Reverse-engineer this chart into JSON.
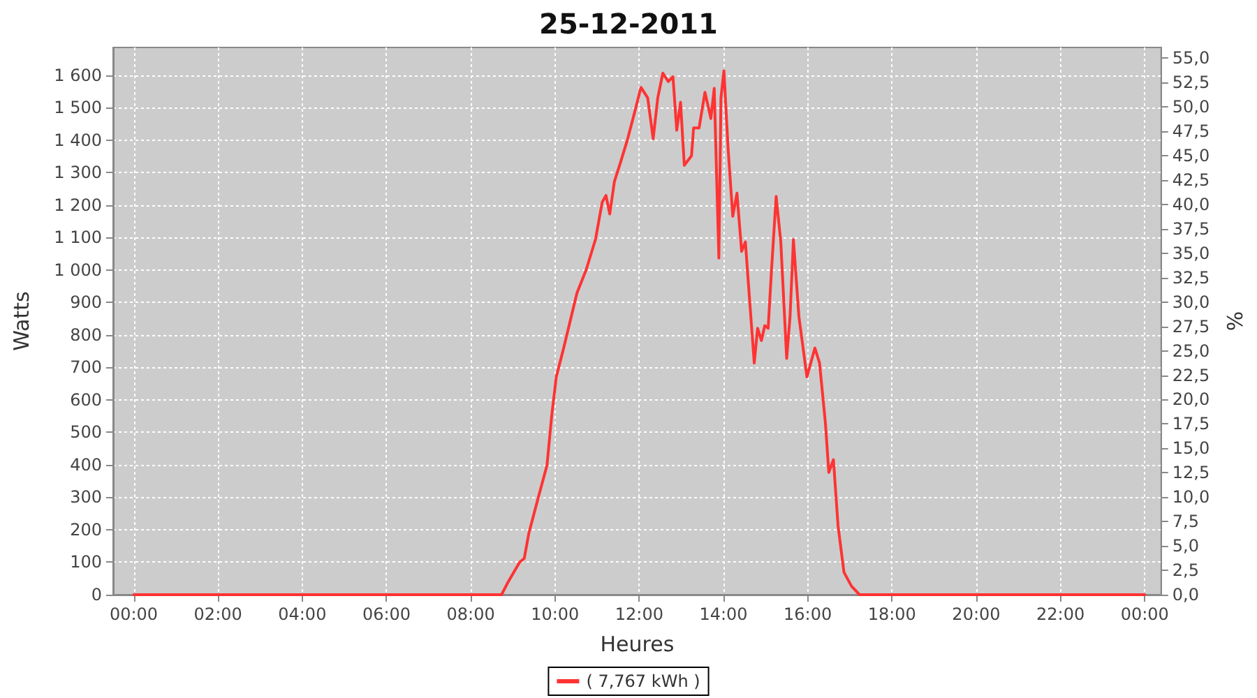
{
  "chart_data": {
    "type": "line",
    "title": "25-12-2011",
    "xlabel": "Heures",
    "ylabel": "Watts",
    "y2label": "%",
    "x": [
      0,
      8.73,
      8.89,
      9.16,
      9.27,
      9.38,
      9.6,
      9.81,
      9.92,
      10.03,
      10.2,
      10.36,
      10.52,
      10.74,
      10.96,
      11.12,
      11.21,
      11.3,
      11.41,
      11.55,
      11.72,
      11.88,
      12.04,
      12.2,
      12.33,
      12.44,
      12.56,
      12.69,
      12.8,
      12.89,
      12.98,
      13.07,
      13.24,
      13.29,
      13.42,
      13.56,
      13.7,
      13.78,
      13.89,
      13.94,
      14.01,
      14.11,
      14.22,
      14.32,
      14.43,
      14.52,
      14.6,
      14.73,
      14.81,
      14.9,
      14.98,
      15.06,
      15.14,
      15.25,
      15.36,
      15.5,
      15.58,
      15.66,
      15.79,
      15.98,
      16.17,
      16.28,
      16.42,
      16.5,
      16.61,
      16.72,
      16.86,
      17.04,
      17.23,
      24
    ],
    "series": [
      {
        "name": "( 7,767 kWh )",
        "color": "#ff3333",
        "values": [
          0,
          0,
          40,
          100,
          112,
          190,
          298,
          399,
          549,
          671,
          757,
          843,
          929,
          1001,
          1094,
          1209,
          1230,
          1173,
          1273,
          1330,
          1402,
          1481,
          1563,
          1531,
          1405,
          1531,
          1607,
          1581,
          1596,
          1431,
          1517,
          1323,
          1352,
          1438,
          1438,
          1548,
          1467,
          1560,
          1037,
          1531,
          1614,
          1373,
          1166,
          1237,
          1058,
          1087,
          943,
          714,
          821,
          783,
          829,
          821,
          1001,
          1227,
          1087,
          728,
          857,
          1094,
          857,
          671,
          760,
          714,
          528,
          377,
          416,
          212,
          69,
          26,
          0,
          0
        ]
      }
    ],
    "xlim": [
      -0.49,
      24.39
    ],
    "xticks": [
      {
        "value": 0,
        "label": "00:00"
      },
      {
        "value": 2,
        "label": "02:00"
      },
      {
        "value": 4,
        "label": "04:00"
      },
      {
        "value": 6,
        "label": "06:00"
      },
      {
        "value": 8,
        "label": "08:00"
      },
      {
        "value": 10,
        "label": "10:00"
      },
      {
        "value": 12,
        "label": "12:00"
      },
      {
        "value": 14,
        "label": "14:00"
      },
      {
        "value": 16,
        "label": "16:00"
      },
      {
        "value": 18,
        "label": "18:00"
      },
      {
        "value": 20,
        "label": "20:00"
      },
      {
        "value": 22,
        "label": "22:00"
      },
      {
        "value": 24,
        "label": "00:00"
      }
    ],
    "ylim": [
      0,
      1686
    ],
    "yticks": [
      0,
      100,
      200,
      300,
      400,
      500,
      600,
      700,
      800,
      900,
      {
        "value": 1000,
        "label": "1 000"
      },
      {
        "value": 1100,
        "label": "1 100"
      },
      {
        "value": 1200,
        "label": "1 200"
      },
      {
        "value": 1300,
        "label": "1 300"
      },
      {
        "value": 1400,
        "label": "1 400"
      },
      {
        "value": 1500,
        "label": "1 500"
      },
      {
        "value": 1600,
        "label": "1 600"
      }
    ],
    "y2lim": [
      0,
      56.1
    ],
    "y2ticks": [
      {
        "value": 0,
        "label": "0,0"
      },
      {
        "value": 2.5,
        "label": "2,5"
      },
      {
        "value": 5,
        "label": "5,0"
      },
      {
        "value": 7.5,
        "label": "7,5"
      },
      {
        "value": 10,
        "label": "10,0"
      },
      {
        "value": 12.5,
        "label": "12,5"
      },
      {
        "value": 15,
        "label": "15,0"
      },
      {
        "value": 17.5,
        "label": "17,5"
      },
      {
        "value": 20,
        "label": "20,0"
      },
      {
        "value": 22.5,
        "label": "22,5"
      },
      {
        "value": 25,
        "label": "25,0"
      },
      {
        "value": 27.5,
        "label": "27,5"
      },
      {
        "value": 30,
        "label": "30,0"
      },
      {
        "value": 32.5,
        "label": "32,5"
      },
      {
        "value": 35,
        "label": "35,0"
      },
      {
        "value": 37.5,
        "label": "37,5"
      },
      {
        "value": 40,
        "label": "40,0"
      },
      {
        "value": 42.5,
        "label": "42,5"
      },
      {
        "value": 45,
        "label": "45,0"
      },
      {
        "value": 47.5,
        "label": "47,5"
      },
      {
        "value": 50,
        "label": "50,0"
      },
      {
        "value": 52.5,
        "label": "52,5"
      },
      {
        "value": 55,
        "label": "55,0"
      }
    ],
    "grid": true,
    "legend": "bottom",
    "marker": "none",
    "line_style": "solid"
  }
}
